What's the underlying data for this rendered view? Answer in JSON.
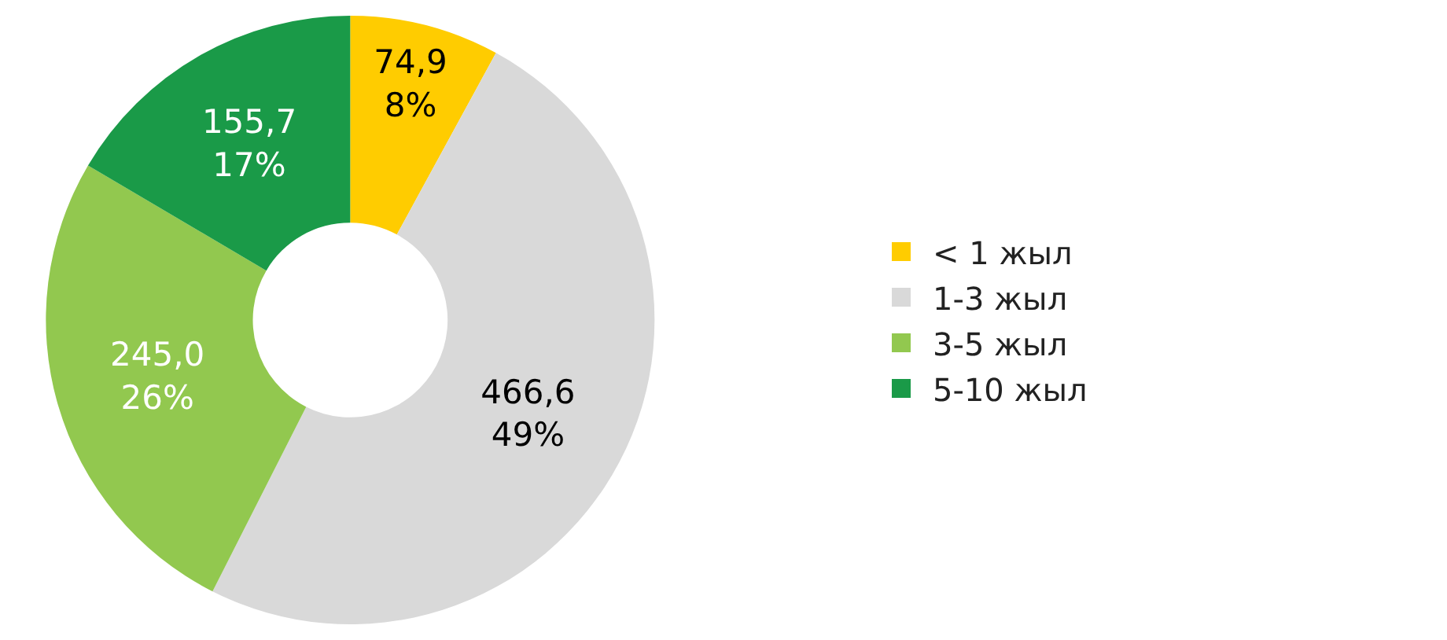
{
  "chart_data": {
    "type": "donut",
    "categories": [
      "< 1 жыл",
      "1-3 жыл",
      "3-5 жыл",
      "5-10 жыл"
    ],
    "values": [
      74.9,
      466.6,
      245.0,
      155.7
    ],
    "value_labels": [
      "74,9\n8%",
      "466,6\n49%",
      "245,0\n26%",
      "155,7\n17%"
    ],
    "colors": [
      "#ffcc00",
      "#d9d9d9",
      "#92c84f",
      "#1a9a48"
    ],
    "legend": "right"
  }
}
